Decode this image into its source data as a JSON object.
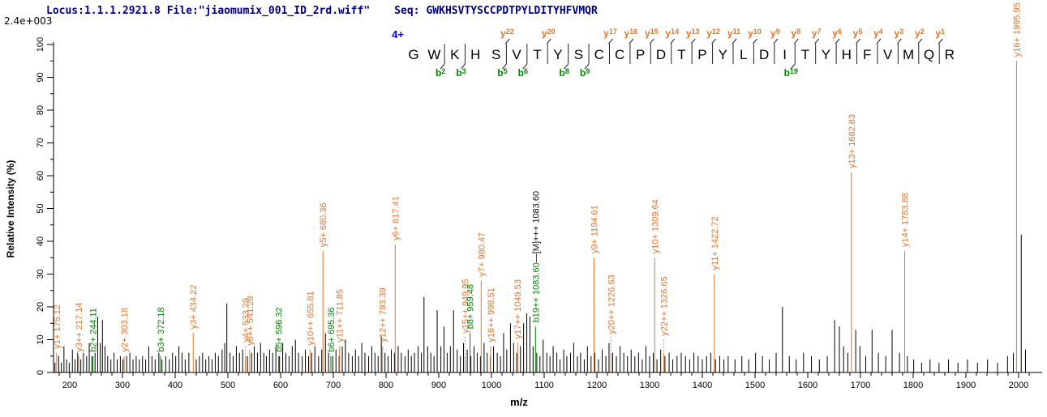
{
  "header": {
    "locus_file": "Locus:1.1.1.2921.8 File:\"jiaomumix_001_ID_2rd.wiff\"",
    "seq_label": "Seq:",
    "seq_value": "GWKHSVTYSCCPDTPYLDITYHFVMQR",
    "intensity_scale": "2.4e+003"
  },
  "sequence_panel": {
    "charge_label": "4+",
    "residues": [
      "G",
      "W",
      "K",
      "H",
      "S",
      "V",
      "T",
      "Y",
      "S",
      "C",
      "C",
      "P",
      "D",
      "T",
      "P",
      "Y",
      "L",
      "D",
      "I",
      "T",
      "Y",
      "H",
      "F",
      "V",
      "M",
      "Q",
      "R"
    ],
    "cleavage_markers": [
      {
        "site": 2,
        "b": "b2"
      },
      {
        "site": 3,
        "b": "b3"
      },
      {
        "site": 5,
        "b": "b5",
        "y": "y22"
      },
      {
        "site": 6,
        "b": "b6"
      },
      {
        "site": 7,
        "y": "y20"
      },
      {
        "site": 8,
        "b": "b8"
      },
      {
        "site": 9,
        "b": "b9"
      },
      {
        "site": 10,
        "y": "y17"
      },
      {
        "site": 11,
        "y": "y16"
      },
      {
        "site": 12,
        "y": "y15"
      },
      {
        "site": 13,
        "y": "y14"
      },
      {
        "site": 14,
        "y": "y13"
      },
      {
        "site": 15,
        "y": "y12"
      },
      {
        "site": 16,
        "y": "y11"
      },
      {
        "site": 17,
        "y": "y10"
      },
      {
        "site": 18,
        "y": "y9"
      },
      {
        "site": 19,
        "b": "b19",
        "y": "y8"
      },
      {
        "site": 20,
        "y": "y7"
      },
      {
        "site": 21,
        "y": "y6"
      },
      {
        "site": 22,
        "y": "y5"
      },
      {
        "site": 23,
        "y": "y4"
      },
      {
        "site": 24,
        "y": "y3"
      },
      {
        "site": 25,
        "y": "y2"
      },
      {
        "site": 26,
        "y": "y1"
      }
    ]
  },
  "colors": {
    "y_ion": "#DB772F",
    "b_ion": "#088008",
    "precursor_label": "#111111",
    "peak": "#000000",
    "axis": "#000000",
    "header_text": "#000080",
    "charge_label": "#0000D0",
    "connector": "#999999"
  },
  "chart_data": {
    "type": "bar",
    "subtype": "centroided mass spectrum (MS/MS)",
    "xlabel": "m/z",
    "ylabel": "Relative  Intensity (%)",
    "xlim": [
      170,
      2030
    ],
    "ylim": [
      0,
      100
    ],
    "grid": false,
    "x_tick_labels": [
      200,
      300,
      400,
      500,
      600,
      700,
      800,
      900,
      1000,
      1100,
      1200,
      1300,
      1400,
      1500,
      1600,
      1700,
      1800,
      1900,
      2000
    ],
    "y_tick_labels": [
      0,
      10,
      20,
      30,
      40,
      50,
      60,
      70,
      80,
      90,
      100
    ],
    "annotated_peaks": [
      {
        "ion": "y1+",
        "mz": 175.12,
        "pct": 6,
        "type": "y"
      },
      {
        "ion": "y3++",
        "mz": 217.14,
        "pct": 5,
        "type": "y"
      },
      {
        "ion": "b2+",
        "mz": 244.11,
        "pct": 5,
        "type": "b"
      },
      {
        "ion": "y2+",
        "mz": 303.18,
        "pct": 5,
        "type": "y"
      },
      {
        "ion": "b3+",
        "mz": 372.18,
        "pct": 5,
        "type": "b"
      },
      {
        "ion": "y3+",
        "mz": 434.22,
        "pct": 12,
        "type": "y"
      },
      {
        "ion": "y4+",
        "mz": 533.29,
        "pct": 5,
        "type": "y",
        "label_raise": 14
      },
      {
        "ion": "y8++",
        "mz": 541.28,
        "pct": 7,
        "type": "y"
      },
      {
        "ion": "b5+",
        "mz": 596.32,
        "pct": 5,
        "type": "b"
      },
      {
        "ion": "y10++",
        "mz": 655.81,
        "pct": 7,
        "type": "y"
      },
      {
        "ion": "y5+",
        "mz": 680.36,
        "pct": 37,
        "type": "y"
      },
      {
        "ion": "b6+",
        "mz": 695.36,
        "pct": 5,
        "type": "b"
      },
      {
        "ion": "y11++",
        "mz": 711.85,
        "pct": 8,
        "type": "y"
      },
      {
        "ion": "y12++",
        "mz": 793.39,
        "pct": 8,
        "type": "y"
      },
      {
        "ion": "y6+",
        "mz": 817.41,
        "pct": 39,
        "type": "y"
      },
      {
        "ion": "y15++",
        "mz": 949.95,
        "pct": 5,
        "type": "y",
        "label_raise": 25
      },
      {
        "ion": "b8+",
        "mz": 959.48,
        "pct": 12,
        "type": "b"
      },
      {
        "ion": "y7+",
        "mz": 980.47,
        "pct": 28,
        "type": "y"
      },
      {
        "ion": "y16++",
        "mz": 998.51,
        "pct": 8,
        "type": "y"
      },
      {
        "ion": "y17++",
        "mz": 1049.53,
        "pct": 9,
        "type": "y"
      },
      {
        "ion": "b19++",
        "mz": 1083.6,
        "pct": 14,
        "type": "b"
      },
      {
        "ion": "[M]+++",
        "mz": 1083.6,
        "pct": 14,
        "type": "precursor",
        "attach_to_previous": true
      },
      {
        "ion": "y9+",
        "mz": 1194.61,
        "pct": 35,
        "type": "y"
      },
      {
        "ion": "y20++",
        "mz": 1226.63,
        "pct": 6,
        "type": "y",
        "label_raise": 20
      },
      {
        "ion": "y10+",
        "mz": 1309.64,
        "pct": 35,
        "type": "y"
      },
      {
        "ion": "y22++",
        "mz": 1326.65,
        "pct": 6,
        "type": "y",
        "label_raise": 18
      },
      {
        "ion": "y11+",
        "mz": 1422.72,
        "pct": 30,
        "type": "y"
      },
      {
        "ion": "y13+",
        "mz": 1682.83,
        "pct": 61,
        "type": "y"
      },
      {
        "ion": "y14+",
        "mz": 1783.88,
        "pct": 37,
        "type": "y"
      },
      {
        "ion": "y16+",
        "mz": 1995.95,
        "pct": 95,
        "type": "y"
      }
    ],
    "unannotated_peaks": [
      [
        172,
        3
      ],
      [
        179,
        5
      ],
      [
        184,
        3
      ],
      [
        189,
        8
      ],
      [
        194,
        4
      ],
      [
        199,
        3
      ],
      [
        205,
        7
      ],
      [
        210,
        4
      ],
      [
        215,
        6
      ],
      [
        221,
        4
      ],
      [
        226,
        6
      ],
      [
        232,
        5
      ],
      [
        237,
        9
      ],
      [
        242,
        5
      ],
      [
        248,
        6
      ],
      [
        253,
        17
      ],
      [
        258,
        9
      ],
      [
        262,
        16
      ],
      [
        267,
        8
      ],
      [
        272,
        5
      ],
      [
        278,
        4
      ],
      [
        284,
        6
      ],
      [
        290,
        4
      ],
      [
        296,
        5
      ],
      [
        301,
        4
      ],
      [
        308,
        5
      ],
      [
        314,
        6
      ],
      [
        320,
        4
      ],
      [
        326,
        5
      ],
      [
        332,
        4
      ],
      [
        338,
        5
      ],
      [
        344,
        4
      ],
      [
        350,
        8
      ],
      [
        356,
        5
      ],
      [
        362,
        4
      ],
      [
        369,
        6
      ],
      [
        375,
        4
      ],
      [
        382,
        5
      ],
      [
        389,
        4
      ],
      [
        395,
        6
      ],
      [
        401,
        5
      ],
      [
        407,
        8
      ],
      [
        413,
        6
      ],
      [
        419,
        4
      ],
      [
        426,
        6
      ],
      [
        440,
        4
      ],
      [
        446,
        5
      ],
      [
        452,
        6
      ],
      [
        458,
        4
      ],
      [
        464,
        5
      ],
      [
        470,
        4
      ],
      [
        476,
        6
      ],
      [
        482,
        5
      ],
      [
        489,
        7
      ],
      [
        494,
        9
      ],
      [
        498,
        21
      ],
      [
        504,
        6
      ],
      [
        510,
        5
      ],
      [
        516,
        8
      ],
      [
        522,
        6
      ],
      [
        528,
        7
      ],
      [
        537,
        5
      ],
      [
        545,
        6
      ],
      [
        550,
        8
      ],
      [
        556,
        6
      ],
      [
        562,
        9
      ],
      [
        568,
        6
      ],
      [
        573,
        5
      ],
      [
        579,
        7
      ],
      [
        585,
        6
      ],
      [
        591,
        8
      ],
      [
        598,
        5
      ],
      [
        604,
        9
      ],
      [
        610,
        6
      ],
      [
        616,
        5
      ],
      [
        622,
        8
      ],
      [
        628,
        10
      ],
      [
        634,
        6
      ],
      [
        641,
        5
      ],
      [
        647,
        7
      ],
      [
        653,
        5
      ],
      [
        659,
        6
      ],
      [
        665,
        8
      ],
      [
        672,
        5
      ],
      [
        678,
        7
      ],
      [
        685,
        12
      ],
      [
        691,
        6
      ],
      [
        699,
        5
      ],
      [
        705,
        7
      ],
      [
        711,
        5
      ],
      [
        717,
        8
      ],
      [
        723,
        10
      ],
      [
        729,
        6
      ],
      [
        736,
        5
      ],
      [
        742,
        7
      ],
      [
        748,
        5
      ],
      [
        754,
        9
      ],
      [
        760,
        6
      ],
      [
        767,
        5
      ],
      [
        773,
        8
      ],
      [
        779,
        6
      ],
      [
        785,
        5
      ],
      [
        791,
        11
      ],
      [
        798,
        6
      ],
      [
        804,
        5
      ],
      [
        810,
        7
      ],
      [
        816,
        6
      ],
      [
        823,
        8
      ],
      [
        829,
        6
      ],
      [
        836,
        5
      ],
      [
        842,
        7
      ],
      [
        848,
        5
      ],
      [
        854,
        6
      ],
      [
        861,
        8
      ],
      [
        867,
        6
      ],
      [
        872,
        23
      ],
      [
        879,
        8
      ],
      [
        885,
        6
      ],
      [
        891,
        5
      ],
      [
        897,
        19
      ],
      [
        904,
        8
      ],
      [
        910,
        14
      ],
      [
        916,
        6
      ],
      [
        922,
        8
      ],
      [
        928,
        19
      ],
      [
        935,
        7
      ],
      [
        941,
        5
      ],
      [
        947,
        9
      ],
      [
        954,
        7
      ],
      [
        961,
        5
      ],
      [
        967,
        8
      ],
      [
        973,
        6
      ],
      [
        979,
        5
      ],
      [
        986,
        9
      ],
      [
        992,
        6
      ],
      [
        998,
        5
      ],
      [
        1004,
        8
      ],
      [
        1011,
        6
      ],
      [
        1017,
        5
      ],
      [
        1023,
        12
      ],
      [
        1029,
        7
      ],
      [
        1036,
        15
      ],
      [
        1042,
        9
      ],
      [
        1048,
        6
      ],
      [
        1055,
        8
      ],
      [
        1061,
        15
      ],
      [
        1067,
        18
      ],
      [
        1073,
        17
      ],
      [
        1079,
        8
      ],
      [
        1086,
        6
      ],
      [
        1092,
        5
      ],
      [
        1098,
        10
      ],
      [
        1105,
        6
      ],
      [
        1111,
        5
      ],
      [
        1117,
        8
      ],
      [
        1124,
        6
      ],
      [
        1130,
        4
      ],
      [
        1137,
        7
      ],
      [
        1143,
        5
      ],
      [
        1150,
        6
      ],
      [
        1156,
        9
      ],
      [
        1163,
        5
      ],
      [
        1169,
        6
      ],
      [
        1176,
        4
      ],
      [
        1182,
        8
      ],
      [
        1189,
        5
      ],
      [
        1196,
        6
      ],
      [
        1203,
        4
      ],
      [
        1210,
        7
      ],
      [
        1217,
        5
      ],
      [
        1223,
        9
      ],
      [
        1230,
        6
      ],
      [
        1237,
        5
      ],
      [
        1244,
        8
      ],
      [
        1251,
        6
      ],
      [
        1258,
        5
      ],
      [
        1265,
        7
      ],
      [
        1272,
        5
      ],
      [
        1279,
        6
      ],
      [
        1286,
        4
      ],
      [
        1293,
        8
      ],
      [
        1300,
        5
      ],
      [
        1307,
        6
      ],
      [
        1314,
        4
      ],
      [
        1321,
        7
      ],
      [
        1329,
        5
      ],
      [
        1337,
        6
      ],
      [
        1344,
        4
      ],
      [
        1352,
        5
      ],
      [
        1360,
        6
      ],
      [
        1368,
        5
      ],
      [
        1376,
        4
      ],
      [
        1384,
        6
      ],
      [
        1392,
        5
      ],
      [
        1400,
        4
      ],
      [
        1408,
        5
      ],
      [
        1416,
        6
      ],
      [
        1425,
        4
      ],
      [
        1433,
        5
      ],
      [
        1441,
        4
      ],
      [
        1449,
        5
      ],
      [
        1462,
        4
      ],
      [
        1475,
        5
      ],
      [
        1488,
        4
      ],
      [
        1501,
        6
      ],
      [
        1514,
        5
      ],
      [
        1527,
        4
      ],
      [
        1540,
        6
      ],
      [
        1552,
        20
      ],
      [
        1565,
        5
      ],
      [
        1578,
        4
      ],
      [
        1592,
        6
      ],
      [
        1607,
        5
      ],
      [
        1622,
        4
      ],
      [
        1637,
        5
      ],
      [
        1651,
        16
      ],
      [
        1660,
        14
      ],
      [
        1668,
        8
      ],
      [
        1676,
        6
      ],
      [
        1691,
        13
      ],
      [
        1699,
        8
      ],
      [
        1710,
        5
      ],
      [
        1722,
        13
      ],
      [
        1734,
        6
      ],
      [
        1748,
        5
      ],
      [
        1760,
        13
      ],
      [
        1774,
        6
      ],
      [
        1789,
        5
      ],
      [
        1801,
        4
      ],
      [
        1816,
        3
      ],
      [
        1832,
        4
      ],
      [
        1849,
        3
      ],
      [
        1867,
        4
      ],
      [
        1885,
        3
      ],
      [
        1903,
        4
      ],
      [
        1922,
        3
      ],
      [
        1941,
        4
      ],
      [
        1960,
        3
      ],
      [
        1979,
        5
      ],
      [
        1990,
        6
      ],
      [
        2005,
        42
      ],
      [
        2013,
        7
      ]
    ]
  }
}
